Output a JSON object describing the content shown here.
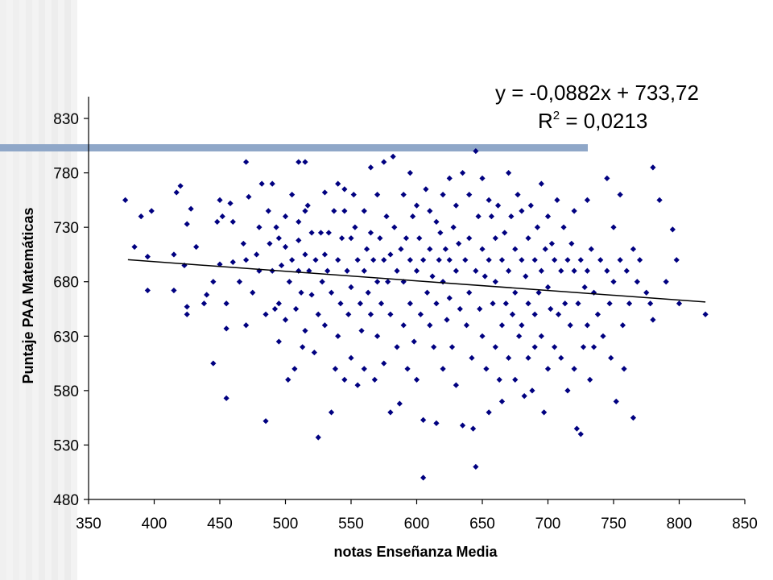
{
  "slide": {
    "accent_bar_color": "#8FA7C8",
    "background_stripe_color": "#E6E6E6"
  },
  "chart_data": {
    "type": "scatter",
    "title": "",
    "xlabel": "notas Enseñanza Media",
    "ylabel": "Puntaje PAA Matemáticas",
    "xlim": [
      350,
      850
    ],
    "ylim": [
      480,
      850
    ],
    "xticks": [
      350,
      400,
      450,
      500,
      550,
      600,
      650,
      700,
      750,
      800,
      850
    ],
    "yticks": [
      480,
      530,
      580,
      630,
      680,
      730,
      780,
      830
    ],
    "grid": false,
    "legend": "none",
    "marker": "diamond",
    "marker_color": "#000080",
    "trendline": {
      "equation": "y = -0,0882x + 733,72",
      "r2_label": "R",
      "r2_sup": "2",
      "r2_value": " = 0,0213",
      "slope": -0.0882,
      "intercept": 733.72,
      "x_range": [
        380,
        820
      ],
      "color": "#000000"
    },
    "points_note": "approx. 900 points; listed as [x, y] pairs read from the chart",
    "points": [
      [
        378,
        755
      ],
      [
        385,
        712
      ],
      [
        390,
        740
      ],
      [
        395,
        703
      ],
      [
        395,
        672
      ],
      [
        398,
        745
      ],
      [
        415,
        705
      ],
      [
        415,
        672
      ],
      [
        417,
        762
      ],
      [
        420,
        768
      ],
      [
        423,
        695
      ],
      [
        425,
        733
      ],
      [
        425,
        657
      ],
      [
        425,
        650
      ],
      [
        428,
        747
      ],
      [
        432,
        712
      ],
      [
        438,
        660
      ],
      [
        440,
        668
      ],
      [
        445,
        680
      ],
      [
        445,
        605
      ],
      [
        448,
        735
      ],
      [
        450,
        755
      ],
      [
        450,
        696
      ],
      [
        452,
        740
      ],
      [
        455,
        660
      ],
      [
        455,
        637
      ],
      [
        455,
        573
      ],
      [
        458,
        752
      ],
      [
        460,
        735
      ],
      [
        460,
        698
      ],
      [
        465,
        680
      ],
      [
        468,
        715
      ],
      [
        470,
        790
      ],
      [
        470,
        700
      ],
      [
        470,
        640
      ],
      [
        472,
        758
      ],
      [
        475,
        670
      ],
      [
        478,
        705
      ],
      [
        480,
        730
      ],
      [
        480,
        690
      ],
      [
        482,
        770
      ],
      [
        485,
        552
      ],
      [
        485,
        650
      ],
      [
        487,
        745
      ],
      [
        488,
        715
      ],
      [
        490,
        770
      ],
      [
        490,
        690
      ],
      [
        492,
        655
      ],
      [
        493,
        730
      ],
      [
        495,
        720
      ],
      [
        495,
        660
      ],
      [
        495,
        625
      ],
      [
        497,
        695
      ],
      [
        500,
        740
      ],
      [
        500,
        712
      ],
      [
        500,
        645
      ],
      [
        502,
        590
      ],
      [
        503,
        680
      ],
      [
        505,
        760
      ],
      [
        505,
        700
      ],
      [
        507,
        600
      ],
      [
        508,
        655
      ],
      [
        510,
        790
      ],
      [
        510,
        735
      ],
      [
        510,
        718
      ],
      [
        510,
        690
      ],
      [
        512,
        670
      ],
      [
        513,
        620
      ],
      [
        515,
        790
      ],
      [
        515,
        745
      ],
      [
        515,
        705
      ],
      [
        515,
        635
      ],
      [
        517,
        750
      ],
      [
        518,
        690
      ],
      [
        520,
        725
      ],
      [
        520,
        668
      ],
      [
        522,
        615
      ],
      [
        523,
        700
      ],
      [
        525,
        537
      ],
      [
        525,
        650
      ],
      [
        527,
        725
      ],
      [
        528,
        680
      ],
      [
        530,
        762
      ],
      [
        530,
        705
      ],
      [
        530,
        640
      ],
      [
        532,
        690
      ],
      [
        533,
        725
      ],
      [
        535,
        560
      ],
      [
        535,
        670
      ],
      [
        537,
        745
      ],
      [
        538,
        600
      ],
      [
        540,
        770
      ],
      [
        540,
        700
      ],
      [
        540,
        630
      ],
      [
        542,
        660
      ],
      [
        543,
        720
      ],
      [
        545,
        765
      ],
      [
        545,
        745
      ],
      [
        545,
        590
      ],
      [
        547,
        690
      ],
      [
        548,
        650
      ],
      [
        550,
        720
      ],
      [
        550,
        675
      ],
      [
        550,
        610
      ],
      [
        552,
        760
      ],
      [
        553,
        730
      ],
      [
        555,
        700
      ],
      [
        555,
        585
      ],
      [
        557,
        660
      ],
      [
        558,
        635
      ],
      [
        560,
        745
      ],
      [
        560,
        690
      ],
      [
        560,
        600
      ],
      [
        562,
        710
      ],
      [
        563,
        670
      ],
      [
        565,
        785
      ],
      [
        565,
        725
      ],
      [
        565,
        650
      ],
      [
        567,
        700
      ],
      [
        568,
        590
      ],
      [
        570,
        760
      ],
      [
        570,
        680
      ],
      [
        570,
        630
      ],
      [
        572,
        720
      ],
      [
        573,
        660
      ],
      [
        575,
        790
      ],
      [
        575,
        700
      ],
      [
        575,
        605
      ],
      [
        577,
        740
      ],
      [
        578,
        680
      ],
      [
        580,
        705
      ],
      [
        580,
        650
      ],
      [
        580,
        560
      ],
      [
        582,
        795
      ],
      [
        583,
        730
      ],
      [
        585,
        690
      ],
      [
        585,
        620
      ],
      [
        587,
        568
      ],
      [
        588,
        710
      ],
      [
        590,
        760
      ],
      [
        590,
        680
      ],
      [
        590,
        640
      ],
      [
        592,
        720
      ],
      [
        593,
        600
      ],
      [
        595,
        780
      ],
      [
        595,
        700
      ],
      [
        595,
        660
      ],
      [
        597,
        740
      ],
      [
        598,
        625
      ],
      [
        600,
        750
      ],
      [
        600,
        690
      ],
      [
        600,
        590
      ],
      [
        602,
        720
      ],
      [
        603,
        650
      ],
      [
        605,
        553
      ],
      [
        605,
        500
      ],
      [
        605,
        700
      ],
      [
        607,
        765
      ],
      [
        608,
        670
      ],
      [
        610,
        745
      ],
      [
        610,
        710
      ],
      [
        610,
        640
      ],
      [
        612,
        685
      ],
      [
        613,
        620
      ],
      [
        615,
        735
      ],
      [
        615,
        660
      ],
      [
        615,
        550
      ],
      [
        617,
        700
      ],
      [
        618,
        725
      ],
      [
        620,
        760
      ],
      [
        620,
        680
      ],
      [
        620,
        600
      ],
      [
        622,
        710
      ],
      [
        623,
        645
      ],
      [
        625,
        775
      ],
      [
        625,
        700
      ],
      [
        625,
        665
      ],
      [
        627,
        620
      ],
      [
        628,
        730
      ],
      [
        630,
        750
      ],
      [
        630,
        690
      ],
      [
        630,
        585
      ],
      [
        632,
        715
      ],
      [
        633,
        655
      ],
      [
        635,
        780
      ],
      [
        635,
        548
      ],
      [
        637,
        700
      ],
      [
        638,
        640
      ],
      [
        640,
        760
      ],
      [
        640,
        720
      ],
      [
        640,
        670
      ],
      [
        642,
        610
      ],
      [
        643,
        545
      ],
      [
        645,
        800
      ],
      [
        645,
        690
      ],
      [
        645,
        510
      ],
      [
        647,
        740
      ],
      [
        648,
        655
      ],
      [
        650,
        775
      ],
      [
        650,
        710
      ],
      [
        650,
        630
      ],
      [
        652,
        685
      ],
      [
        653,
        600
      ],
      [
        655,
        755
      ],
      [
        655,
        700
      ],
      [
        655,
        560
      ],
      [
        657,
        740
      ],
      [
        658,
        660
      ],
      [
        660,
        720
      ],
      [
        660,
        680
      ],
      [
        660,
        620
      ],
      [
        662,
        750
      ],
      [
        663,
        590
      ],
      [
        665,
        700
      ],
      [
        665,
        640
      ],
      [
        665,
        570
      ],
      [
        667,
        725
      ],
      [
        668,
        660
      ],
      [
        670,
        780
      ],
      [
        670,
        690
      ],
      [
        670,
        610
      ],
      [
        672,
        740
      ],
      [
        673,
        650
      ],
      [
        675,
        710
      ],
      [
        675,
        670
      ],
      [
        675,
        590
      ],
      [
        677,
        760
      ],
      [
        678,
        630
      ],
      [
        680,
        745
      ],
      [
        680,
        700
      ],
      [
        680,
        640
      ],
      [
        682,
        575
      ],
      [
        683,
        685
      ],
      [
        685,
        720
      ],
      [
        685,
        660
      ],
      [
        685,
        610
      ],
      [
        687,
        750
      ],
      [
        688,
        580
      ],
      [
        690,
        700
      ],
      [
        690,
        650
      ],
      [
        690,
        620
      ],
      [
        692,
        730
      ],
      [
        693,
        670
      ],
      [
        695,
        770
      ],
      [
        695,
        690
      ],
      [
        695,
        630
      ],
      [
        697,
        560
      ],
      [
        698,
        710
      ],
      [
        700,
        740
      ],
      [
        700,
        675
      ],
      [
        700,
        600
      ],
      [
        702,
        655
      ],
      [
        703,
        715
      ],
      [
        705,
        700
      ],
      [
        705,
        620
      ],
      [
        707,
        755
      ],
      [
        708,
        650
      ],
      [
        710,
        690
      ],
      [
        710,
        610
      ],
      [
        712,
        730
      ],
      [
        713,
        660
      ],
      [
        715,
        700
      ],
      [
        715,
        580
      ],
      [
        717,
        640
      ],
      [
        718,
        715
      ],
      [
        720,
        745
      ],
      [
        720,
        690
      ],
      [
        720,
        600
      ],
      [
        722,
        545
      ],
      [
        723,
        660
      ],
      [
        725,
        540
      ],
      [
        725,
        700
      ],
      [
        727,
        620
      ],
      [
        728,
        675
      ],
      [
        730,
        755
      ],
      [
        730,
        690
      ],
      [
        730,
        640
      ],
      [
        732,
        590
      ],
      [
        733,
        710
      ],
      [
        735,
        670
      ],
      [
        735,
        620
      ],
      [
        738,
        650
      ],
      [
        740,
        700
      ],
      [
        742,
        630
      ],
      [
        745,
        775
      ],
      [
        745,
        690
      ],
      [
        747,
        660
      ],
      [
        748,
        610
      ],
      [
        750,
        730
      ],
      [
        750,
        680
      ],
      [
        752,
        570
      ],
      [
        755,
        760
      ],
      [
        755,
        700
      ],
      [
        757,
        640
      ],
      [
        758,
        600
      ],
      [
        760,
        690
      ],
      [
        762,
        660
      ],
      [
        765,
        555
      ],
      [
        765,
        710
      ],
      [
        768,
        680
      ],
      [
        770,
        700
      ],
      [
        775,
        670
      ],
      [
        778,
        660
      ],
      [
        780,
        785
      ],
      [
        780,
        645
      ],
      [
        785,
        755
      ],
      [
        790,
        680
      ],
      [
        795,
        728
      ],
      [
        798,
        700
      ],
      [
        800,
        660
      ],
      [
        820,
        650
      ]
    ]
  }
}
